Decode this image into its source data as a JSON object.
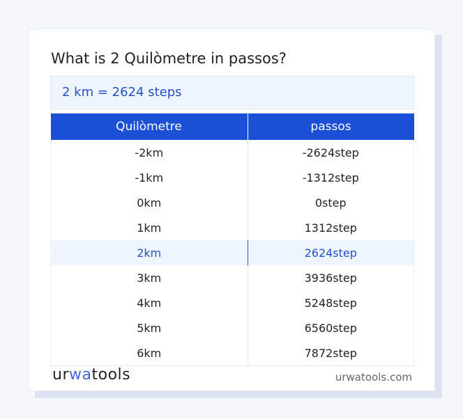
{
  "title": "What is 2 Quilòmetre in passos?",
  "result": "2 km = 2624 steps",
  "table": {
    "headers": [
      "Quilòmetre",
      "passos"
    ],
    "rows": [
      [
        "-2km",
        "-2624step"
      ],
      [
        "-1km",
        "-1312step"
      ],
      [
        "0km",
        "0step"
      ],
      [
        "1km",
        "1312step"
      ],
      [
        "2km",
        "2624step"
      ],
      [
        "3km",
        "3936step"
      ],
      [
        "4km",
        "5248step"
      ],
      [
        "5km",
        "6560step"
      ],
      [
        "6km",
        "7872step"
      ]
    ],
    "highlighted_row": 4
  },
  "footer": {
    "logo": "urwatools",
    "logo_parts": [
      "ur",
      "wa",
      "tools"
    ],
    "site": "urwatools.com"
  },
  "colors": {
    "accent": "#1b4fd6",
    "highlight_bg": "#eef5fe",
    "highlight_text": "#2450c8"
  }
}
